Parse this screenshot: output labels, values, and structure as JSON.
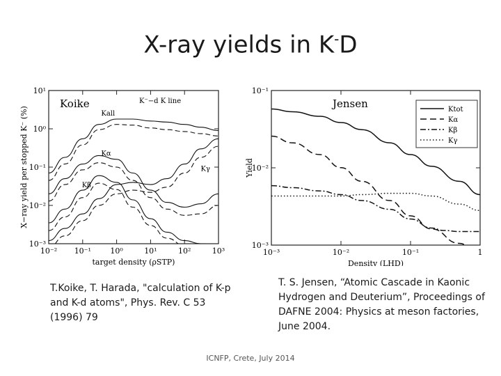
{
  "slide": {
    "title_main": "X-ray yields in K",
    "title_sup": "-",
    "title_end": "D",
    "caption_left": "T.Koike, T. Harada, \"calculation of K-p and K-d atoms\", Phys. Rev. C 53 (1996) 79",
    "caption_right": "T. S. Jensen, “Atomic Cascade in Kaonic Hydrogen and Deuterium”, Proceedings of DAFNE 2004: Physics at meson factories, June 2004.",
    "footer": "ICNFP, Crete, July 2014"
  },
  "chart_data": [
    {
      "type": "line",
      "title": "Koike",
      "subtitle": "K⁻−d K line",
      "xlabel": "target density (ρSTP)",
      "ylabel": "X−ray yield per stopped K⁻ (%)",
      "xscale": "log",
      "yscale": "log",
      "xlim": [
        0.01,
        1000
      ],
      "ylim": [
        0.001,
        10
      ],
      "xticks": [
        "10⁻²",
        "10⁻¹",
        "10⁰",
        "10¹",
        "10²",
        "10³"
      ],
      "yticks": [
        "10¹",
        "10⁰",
        "10⁻¹",
        "10⁻²",
        "10⁻³"
      ],
      "series": [
        {
          "name": "Kall",
          "style": "solid",
          "x": [
            0.01,
            0.03,
            0.1,
            0.3,
            1,
            3,
            10,
            30,
            100,
            300,
            1000
          ],
          "y": [
            0.07,
            0.18,
            0.55,
            1.3,
            1.8,
            1.8,
            1.6,
            1.5,
            1.3,
            1.1,
            0.9
          ]
        },
        {
          "name": "Kall (dashed)",
          "style": "dashed",
          "x": [
            0.01,
            0.03,
            0.1,
            0.3,
            1,
            3,
            10,
            30,
            100,
            300,
            1000
          ],
          "y": [
            0.045,
            0.12,
            0.38,
            0.95,
            1.3,
            1.25,
            1.05,
            0.95,
            0.85,
            0.75,
            0.65
          ]
        },
        {
          "name": "Kα",
          "style": "solid",
          "x": [
            0.01,
            0.03,
            0.1,
            0.3,
            1,
            3,
            10,
            30,
            100,
            300,
            1000
          ],
          "y": [
            0.02,
            0.05,
            0.12,
            0.2,
            0.16,
            0.07,
            0.025,
            0.012,
            0.009,
            0.011,
            0.02
          ]
        },
        {
          "name": "Kα (dashed)",
          "style": "dashed",
          "x": [
            0.01,
            0.03,
            0.1,
            0.3,
            1,
            3,
            10,
            30,
            100,
            300,
            1000
          ],
          "y": [
            0.013,
            0.035,
            0.085,
            0.13,
            0.1,
            0.045,
            0.016,
            0.008,
            0.0055,
            0.006,
            0.01
          ]
        },
        {
          "name": "Kβ",
          "style": "solid",
          "x": [
            0.01,
            0.03,
            0.1,
            0.3,
            1,
            3,
            10,
            30,
            100,
            300,
            1000
          ],
          "y": [
            0.0035,
            0.008,
            0.025,
            0.06,
            0.04,
            0.014,
            0.0045,
            0.002,
            0.0012,
            0.001,
            0.0009
          ]
        },
        {
          "name": "Kβ (dashed)",
          "style": "dashed",
          "x": [
            0.01,
            0.03,
            0.1,
            0.3,
            1,
            3,
            10,
            30,
            100,
            300,
            1000
          ],
          "y": [
            0.0022,
            0.005,
            0.016,
            0.038,
            0.026,
            0.009,
            0.003,
            0.0014,
            0.0009,
            0.0008,
            0.0007
          ]
        },
        {
          "name": "Kγ",
          "style": "solid",
          "x": [
            0.01,
            0.03,
            0.1,
            0.3,
            1,
            3,
            10,
            30,
            100,
            300,
            1000
          ],
          "y": [
            0.0012,
            0.0025,
            0.006,
            0.015,
            0.035,
            0.04,
            0.035,
            0.05,
            0.12,
            0.3,
            0.55
          ]
        },
        {
          "name": "Kγ (dashed)",
          "style": "dashed",
          "x": [
            0.01,
            0.03,
            0.1,
            0.3,
            1,
            3,
            10,
            30,
            100,
            300,
            1000
          ],
          "y": [
            0.0008,
            0.0016,
            0.004,
            0.01,
            0.02,
            0.025,
            0.022,
            0.03,
            0.07,
            0.18,
            0.35
          ]
        }
      ],
      "annotations": [
        {
          "text": "Kall",
          "x": 0.35,
          "y": 2.2
        },
        {
          "text": "Kα",
          "x": 0.35,
          "y": 0.2
        },
        {
          "text": "Kβ",
          "x": 0.095,
          "y": 0.03
        },
        {
          "text": "Kγ",
          "x": 300,
          "y": 0.08
        }
      ]
    },
    {
      "type": "line",
      "title": "Jensen",
      "xlabel": "Density (LHD)",
      "ylabel": "Yield",
      "xscale": "log",
      "yscale": "log",
      "xlim": [
        0.001,
        1
      ],
      "ylim": [
        0.0003,
        0.1
      ],
      "xticks": [
        "10⁻³",
        "10⁻²",
        "10⁻¹",
        "1"
      ],
      "yticks": [
        "10⁻¹",
        "10⁻²",
        "10⁻³"
      ],
      "legend": {
        "position": "top-right",
        "entries": [
          {
            "label": "Ktot",
            "style": "solid"
          },
          {
            "label": "Kα",
            "style": "longdash"
          },
          {
            "label": "Kβ",
            "style": "dashdot"
          },
          {
            "label": "Kγ",
            "style": "dotted"
          }
        ]
      },
      "series": [
        {
          "name": "Ktot",
          "style": "solid",
          "x": [
            0.001,
            0.002,
            0.005,
            0.01,
            0.02,
            0.05,
            0.1,
            0.2,
            0.5,
            1
          ],
          "y": [
            0.05,
            0.045,
            0.038,
            0.03,
            0.023,
            0.014,
            0.009,
            0.0058,
            0.0033,
            0.002
          ]
        },
        {
          "name": "Kα",
          "style": "longdash",
          "x": [
            0.001,
            0.002,
            0.005,
            0.01,
            0.02,
            0.05,
            0.1,
            0.2,
            0.5,
            1
          ],
          "y": [
            0.018,
            0.014,
            0.009,
            0.0055,
            0.0033,
            0.0016,
            0.0009,
            0.00055,
            0.00032,
            0.0002
          ]
        },
        {
          "name": "Kβ",
          "style": "dashdot",
          "x": [
            0.001,
            0.002,
            0.005,
            0.01,
            0.02,
            0.05,
            0.1,
            0.2,
            0.3,
            0.5,
            1
          ],
          "y": [
            0.0028,
            0.0026,
            0.0023,
            0.002,
            0.0016,
            0.00115,
            0.0008,
            0.00057,
            0.00052,
            0.0005,
            0.0005
          ]
        },
        {
          "name": "Kγ",
          "style": "dotted",
          "x": [
            0.001,
            0.002,
            0.005,
            0.01,
            0.02,
            0.05,
            0.1,
            0.2,
            0.5,
            1
          ],
          "y": [
            0.0019,
            0.0019,
            0.0019,
            0.0019,
            0.002,
            0.0021,
            0.0021,
            0.0019,
            0.0014,
            0.0011
          ]
        }
      ]
    }
  ]
}
